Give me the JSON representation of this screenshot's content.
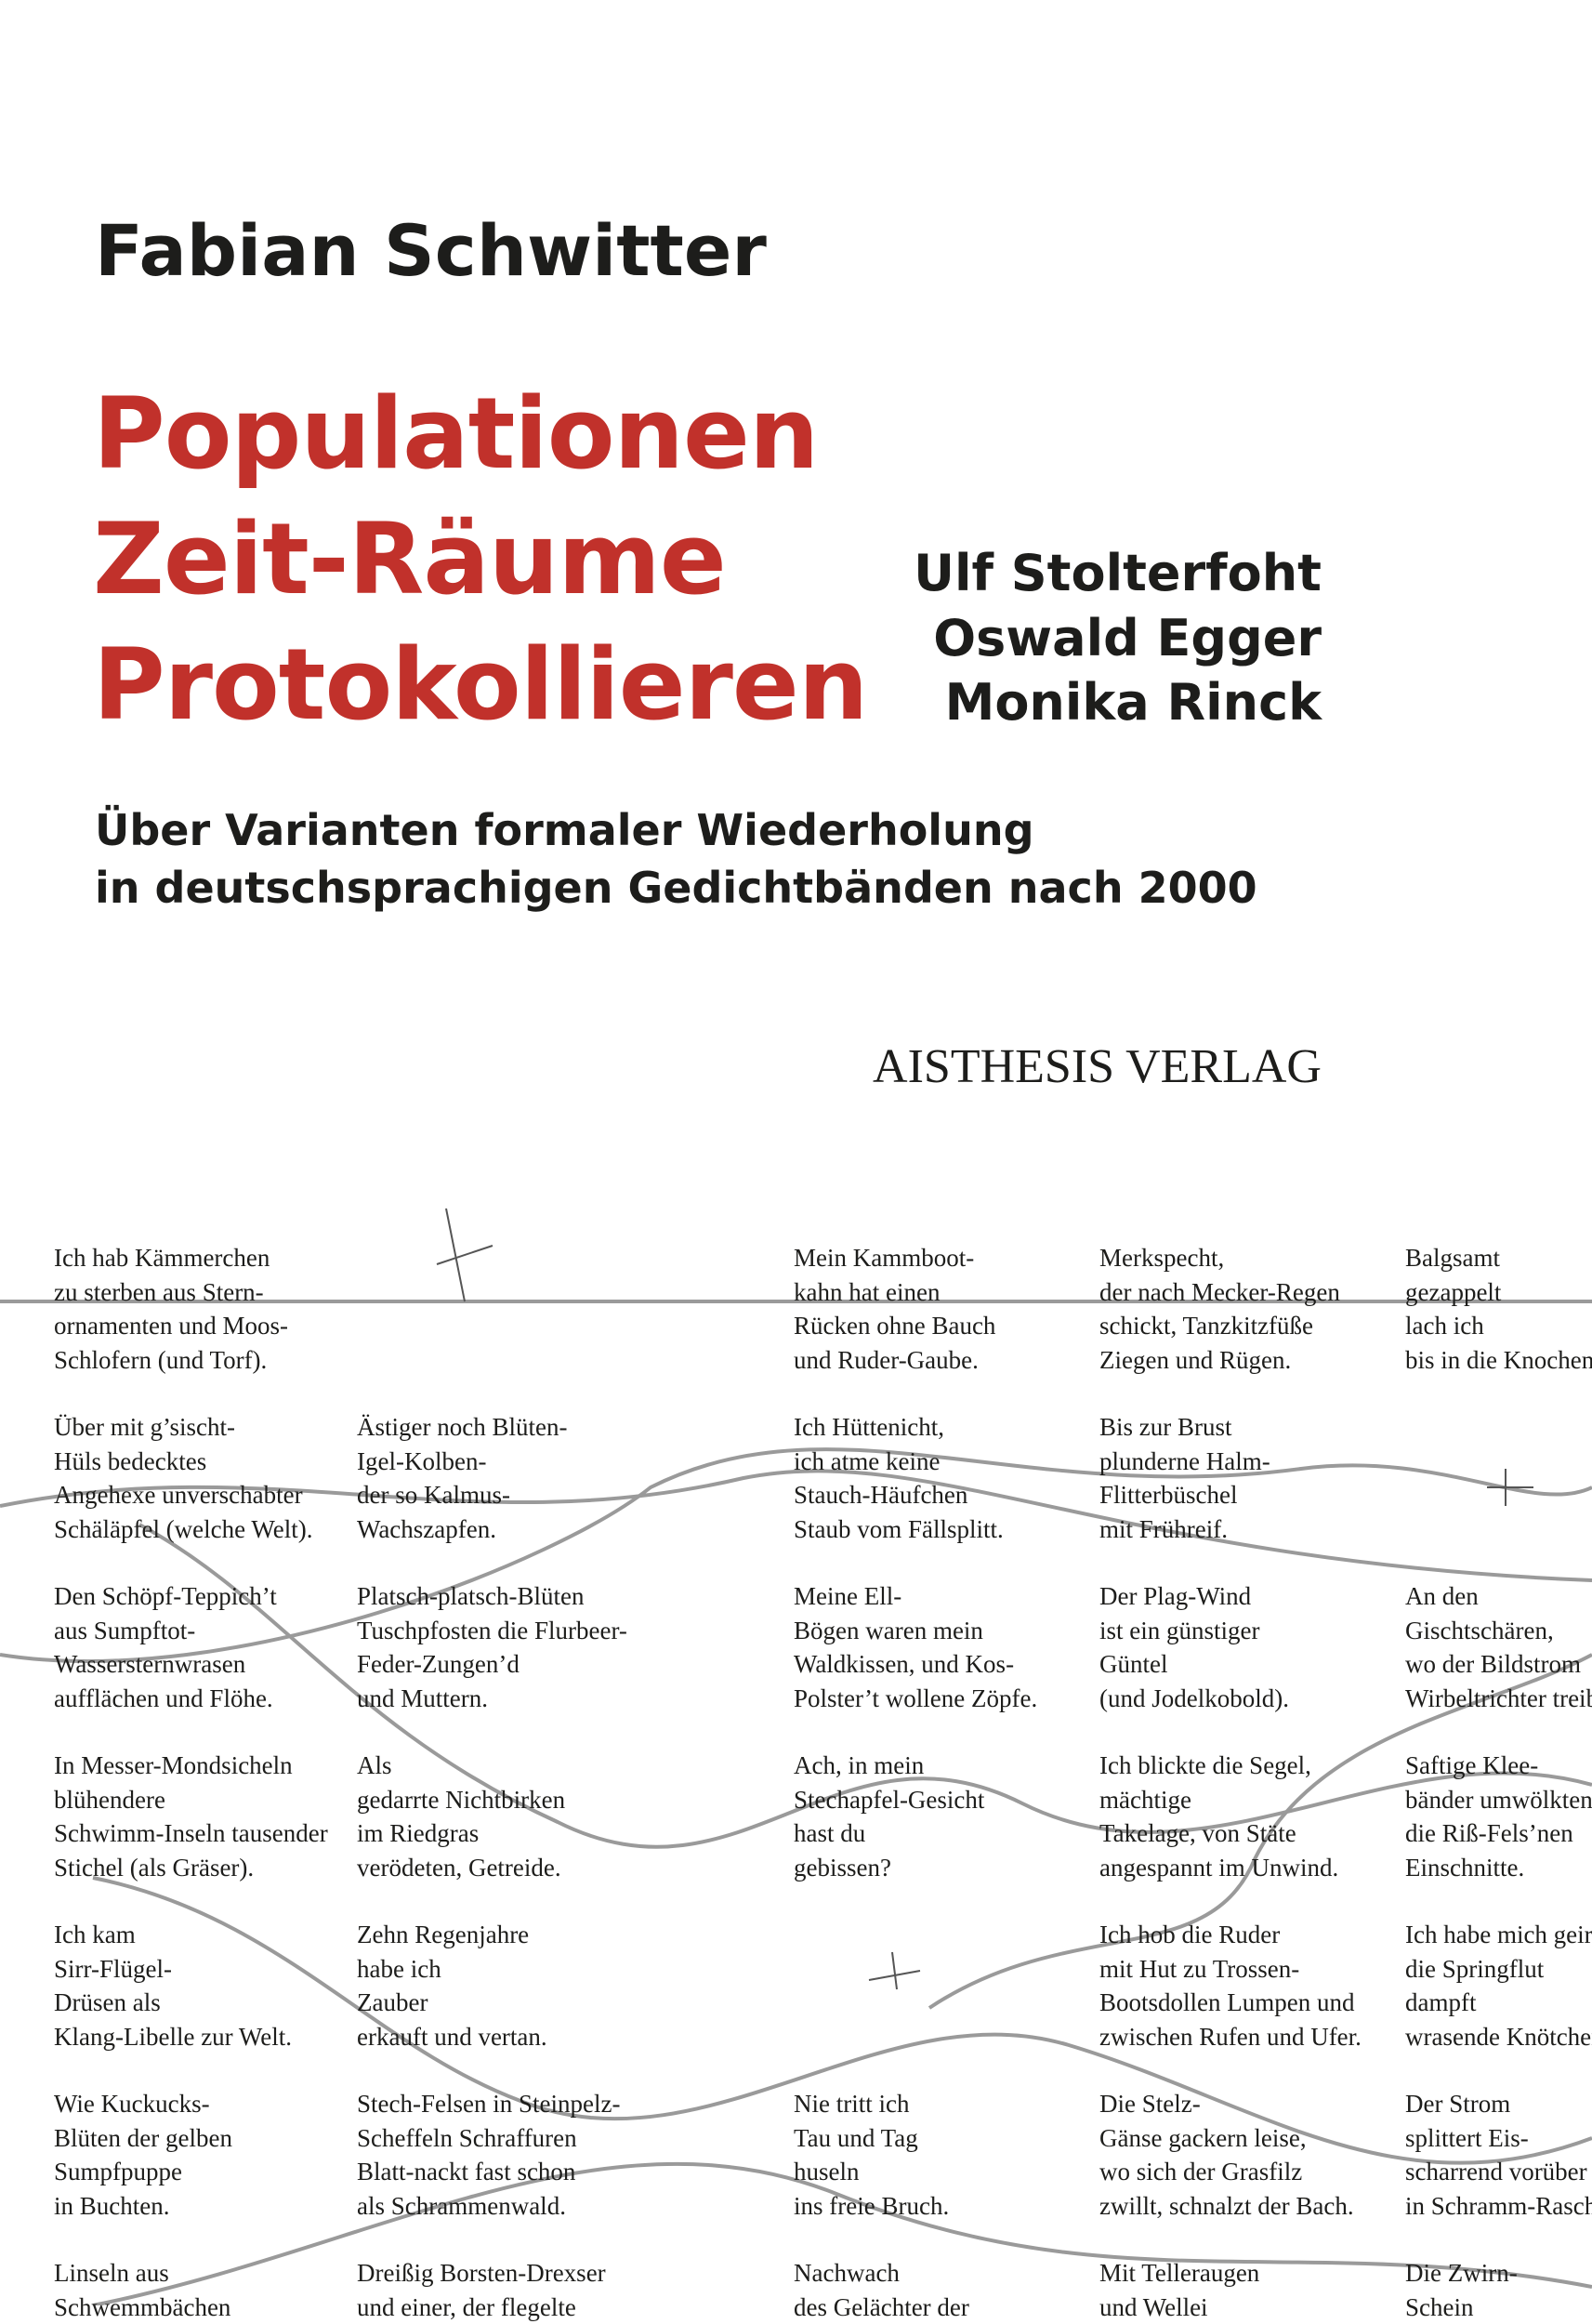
{
  "author": "Fabian Schwitter",
  "title": [
    "Populationen",
    "Zeit-Räume",
    "Protokollieren"
  ],
  "featured_poets": [
    "Ulf Stolterfoht",
    "Oswald Egger",
    "Monika Rinck"
  ],
  "subtitle": [
    "Über Varianten formaler Wiederholung",
    "in deutschsprachigen Gedichtbänden nach 2000"
  ],
  "publisher": "AISTHESIS VERLAG",
  "poems": [
    [
      [
        "Ich hab Kämmerchen",
        "zu sterben aus Stern-",
        "ornamenten und Moos-",
        "Schlofern (und Torf)."
      ],
      [
        "Über mit g’sischt-",
        "Hüls bedecktes",
        "Angehexe unverschabter",
        "Schäläpfel (welche Welt)."
      ],
      [
        "Den Schöpf-Teppich’t",
        "aus Sumpftot-",
        "Wassersternwrasen",
        "aufflächen und Flöhe."
      ],
      [
        "In Messer-Mondsicheln",
        "blühendere",
        "Schwimm-Inseln tausender",
        "Stichel (als Gräser)."
      ],
      [
        "Ich kam",
        "Sirr-Flügel-",
        "Drüsen als",
        "Klang-Libelle zur Welt."
      ],
      [
        "Wie Kuckucks-",
        "Blüten der gelben",
        "Sumpfpuppe",
        "in Buchten."
      ],
      [
        "Linseln aus",
        "Schwemmbächen"
      ]
    ],
    [
      null,
      [
        "Ästiger noch Blüten-",
        "Igel-Kolben-",
        "der so Kalmus-",
        "Wachszapfen."
      ],
      [
        "Platsch-platsch-Blüten",
        "Tuschpfosten die Flurbeer-",
        "Feder-Zungen’d",
        "und Muttern."
      ],
      [
        "Als",
        "gedarrte Nichtbirken",
        "im Riedgras",
        "verödeten, Getreide."
      ],
      [
        "Zehn Regenjahre",
        "habe ich",
        "Zauber",
        "erkauft und vertan."
      ],
      [
        "Stech-Felsen in Steinpelz-",
        "Scheffeln Schraffuren",
        "Blatt-nackt fast schon",
        "als Schrammenwald."
      ],
      [
        "Dreißig Borsten-Drexser",
        "und einer, der flegelte"
      ]
    ],
    [
      [
        "Mein Kammboot-",
        "kahn hat einen",
        "Rücken ohne Bauch",
        "und Ruder-Gaube."
      ],
      [
        "Ich Hüttenicht,",
        "ich atme keine",
        "Stauch-Häufchen",
        "Staub vom Fällsplitt."
      ],
      [
        "Meine Ell-",
        "Bögen waren mein",
        "Waldkissen, und Kos-",
        "Polster’t wollene Zöpfe."
      ],
      [
        "Ach, in mein",
        "Stechapfel-Gesicht",
        "hast du",
        "gebissen?"
      ],
      null,
      [
        "Nie tritt ich",
        "Tau und Tag",
        "huseln",
        "ins freie Bruch."
      ],
      [
        "Nachwach",
        "des Gelächter der"
      ]
    ],
    [
      [
        "Merkspecht,",
        "der nach Mecker-Regen",
        "schickt, Tanzkitzfüße",
        "Ziegen und Rügen."
      ],
      [
        "Bis zur Brust",
        "plunderne Halm-",
        "Flitterbüschel",
        "mit Frühreif."
      ],
      [
        "Der Plag-Wind",
        "ist ein günstiger",
        "Güntel",
        "(und Jodelkobold)."
      ],
      [
        "Ich blickte die Segel,",
        "mächtige",
        "Takelage, von Stäte",
        "angespannt im Unwind."
      ],
      [
        "Ich hob die Ruder",
        "mit Hut zu Trossen-",
        "Bootsdollen Lumpen und",
        "zwischen Rufen und Ufer."
      ],
      [
        "Die Stelz-",
        "Gänse gackern leise,",
        "wo sich der Grasfilz",
        "zwillt, schnalzt der Bach."
      ],
      [
        "Mit Telleraugen",
        "und Wellei"
      ]
    ],
    [
      [
        "Balgsamt",
        "gezappelt",
        "lach ich",
        "bis in die Knochen"
      ],
      null,
      [
        "An den",
        "Gischtschären,",
        "wo der Bildstrom",
        "Wirbeltrichter treib"
      ],
      [
        "Saftige Klee-",
        "bänder umwölkten",
        "die Riß-Fels’nen",
        "Einschnitte."
      ],
      [
        "Ich habe mich geir",
        "die Springflut",
        "dampft",
        "wrasende Knötchen"
      ],
      [
        "Der Strom",
        "splittert Eis-",
        "scharrend vorüber",
        "in Schramm-Rasch"
      ],
      [
        "Die Zwirn-",
        "Schein"
      ]
    ]
  ]
}
